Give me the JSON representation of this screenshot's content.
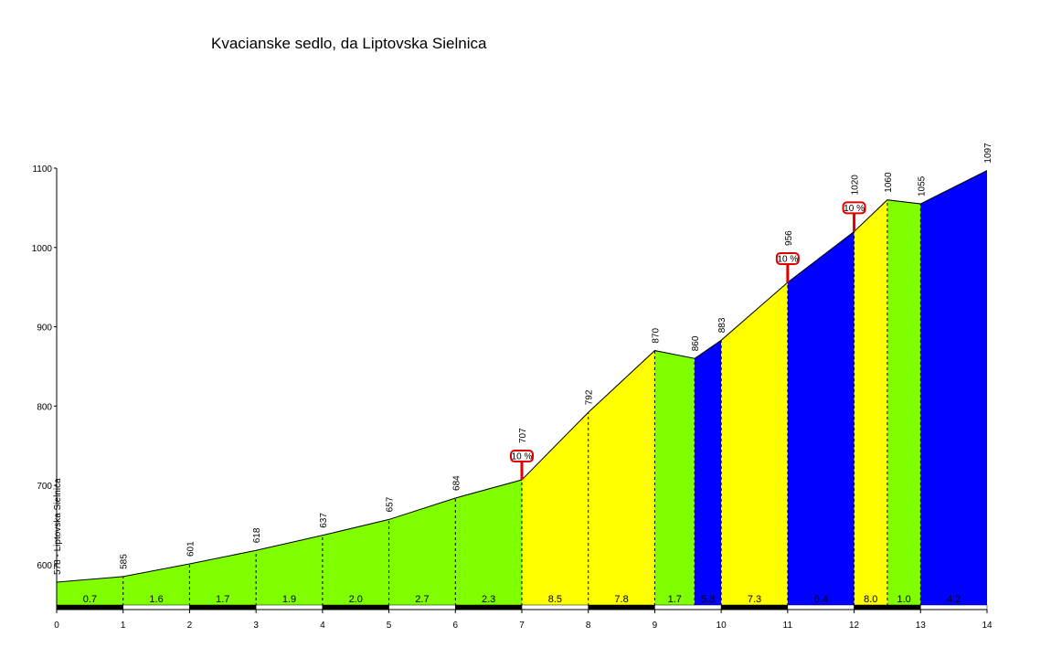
{
  "chart_data": {
    "type": "profile",
    "title": "Kvacianske sedlo, da Liptovska Sielnica",
    "x": [
      0,
      1,
      2,
      3,
      4,
      5,
      6,
      7,
      8,
      9,
      9.6,
      10,
      11,
      12,
      12.5,
      13,
      14
    ],
    "values": [
      578,
      585,
      601,
      618,
      637,
      657,
      684,
      707,
      792,
      870,
      860,
      883,
      956,
      1020,
      1060,
      1055,
      1097
    ],
    "value_labels": [
      "578 - Liptovska Sielnica",
      "585",
      "601",
      "618",
      "637",
      "657",
      "684",
      "707",
      "792",
      "870",
      "860",
      "883",
      "956",
      "1020",
      "1060",
      "1055",
      "1097"
    ],
    "segment_grades": [
      0.7,
      1.6,
      1.7,
      1.9,
      2.0,
      2.7,
      2.3,
      8.5,
      7.8,
      1.7,
      5.8,
      7.3,
      6.4,
      8.0,
      1.0,
      4.2
    ],
    "segment_grade_labels": [
      "0.7",
      "1.6",
      "1.7",
      "1.9",
      "2.0",
      "2.7",
      "2.3",
      "8.5",
      "7.8",
      "1.7",
      "5.8",
      "7.3",
      "6.4",
      "8.0",
      "1.0",
      "4.2"
    ],
    "segment_colors": [
      "#80ff00",
      "#80ff00",
      "#80ff00",
      "#80ff00",
      "#80ff00",
      "#80ff00",
      "#80ff00",
      "#ffff00",
      "#ffff00",
      "#80ff00",
      "#0000ff",
      "#ffff00",
      "#0000ff",
      "#ffff00",
      "#80ff00",
      "#0000ff"
    ],
    "annotations": [
      {
        "x": 7,
        "label": "10 %"
      },
      {
        "x": 11,
        "label": "10 %"
      },
      {
        "x": 12,
        "label": "10 %"
      }
    ],
    "xlim": [
      0,
      14
    ],
    "xticks": [
      0,
      1,
      2,
      3,
      4,
      5,
      6,
      7,
      8,
      9,
      10,
      11,
      12,
      13,
      14
    ],
    "ylim": [
      548,
      1100
    ],
    "yticks": [
      600,
      700,
      800,
      900,
      1000,
      1100
    ]
  }
}
